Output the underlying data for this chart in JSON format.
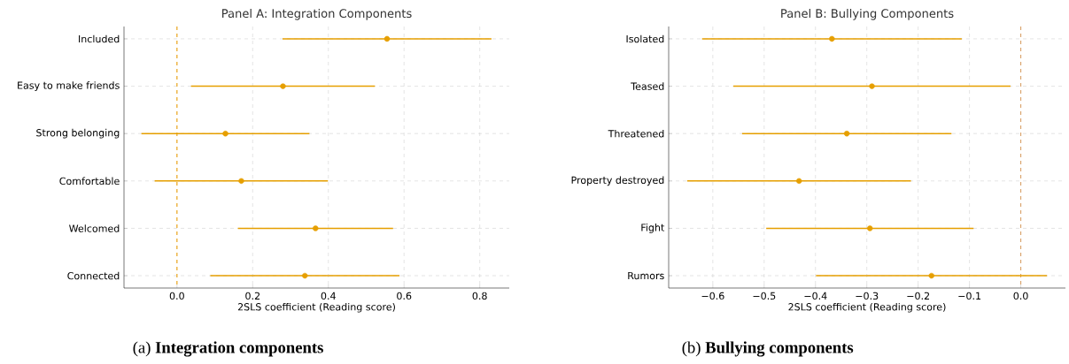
{
  "chart_data": [
    {
      "type": "scatter",
      "orientation": "horizontal",
      "title": "Panel A: Integration Components",
      "xlabel": "2SLS coefficient (Reading score)",
      "categories": [
        "Included",
        "Easy to make friends",
        "Strong belonging",
        "Comfortable",
        "Welcomed",
        "Connected"
      ],
      "values": [
        0.555,
        0.28,
        0.128,
        0.17,
        0.366,
        0.338
      ],
      "errors": [
        0.276,
        0.243,
        0.222,
        0.229,
        0.205,
        0.25
      ],
      "color": "#e69f00",
      "marker": "circle",
      "grid": true,
      "xlim": [
        -0.14,
        0.878
      ],
      "xticks": [
        {
          "value": 0,
          "label": "0.0"
        },
        {
          "value": 0.2,
          "label": "0.2"
        },
        {
          "value": 0.4,
          "label": "0.4"
        },
        {
          "value": 0.6,
          "label": "0.6"
        },
        {
          "value": 0.8,
          "label": "0.8"
        }
      ],
      "ref_lines": [
        {
          "axis": "x",
          "value": 0,
          "color": "#f0a30a",
          "line_style": "dashed"
        }
      ],
      "annotations": [
        "(a) **Integration components**"
      ]
    },
    {
      "type": "scatter",
      "orientation": "horizontal",
      "title": "Panel B: Bullying Components",
      "xlabel": "2SLS coefficient (Reading score)",
      "categories": [
        "Isolated",
        "Teased",
        "Threatened",
        "Property destroyed",
        "Fight",
        "Rumors"
      ],
      "values": [
        -0.368,
        -0.29,
        -0.339,
        -0.432,
        -0.294,
        -0.174
      ],
      "errors": [
        0.253,
        0.27,
        0.204,
        0.218,
        0.202,
        0.225
      ],
      "color": "#e69f00",
      "marker": "circle",
      "grid": true,
      "xlim": [
        -0.686,
        0.087
      ],
      "xticks": [
        {
          "value": -0.6,
          "label": "−0.6"
        },
        {
          "value": -0.5,
          "label": "−0.5"
        },
        {
          "value": -0.4,
          "label": "−0.4"
        },
        {
          "value": -0.3,
          "label": "−0.3"
        },
        {
          "value": -0.2,
          "label": "−0.2"
        },
        {
          "value": -0.1,
          "label": "−0.1"
        },
        {
          "value": 0,
          "label": "0.0"
        }
      ],
      "ref_lines": [
        {
          "axis": "x",
          "value": 0,
          "color": "#d9a066",
          "line_style": "dashed"
        }
      ],
      "annotations": [
        "(b) **Bullying components**"
      ]
    }
  ]
}
